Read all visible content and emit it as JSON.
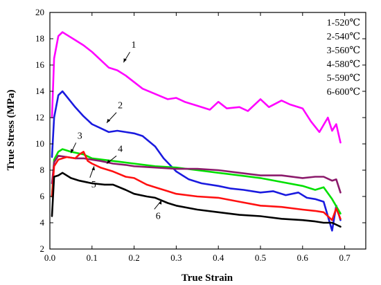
{
  "chart_data": {
    "type": "line",
    "title": "",
    "xlabel": "True Strain",
    "ylabel": "True Stress (MPa)",
    "xlim": [
      0.0,
      0.75
    ],
    "ylim": [
      2,
      20
    ],
    "xticks": [
      "0.0",
      "0.1",
      "0.2",
      "0.3",
      "0.4",
      "0.5",
      "0.6",
      "0.7"
    ],
    "yticks": [
      "2",
      "4",
      "6",
      "8",
      "10",
      "12",
      "14",
      "16",
      "18",
      "20"
    ],
    "grid": false,
    "legend_position": "top-right",
    "legend": [
      "1-520℃",
      "2-540℃",
      "3-560℃",
      "4-580℃",
      "5-590℃",
      "6-600℃"
    ],
    "series": [
      {
        "name": "1-520℃",
        "color": "#ff00ff",
        "label": "1",
        "x": [
          0.005,
          0.01,
          0.02,
          0.03,
          0.04,
          0.06,
          0.08,
          0.1,
          0.12,
          0.14,
          0.16,
          0.18,
          0.2,
          0.22,
          0.25,
          0.28,
          0.3,
          0.32,
          0.35,
          0.38,
          0.4,
          0.42,
          0.45,
          0.47,
          0.5,
          0.52,
          0.55,
          0.57,
          0.6,
          0.62,
          0.64,
          0.66,
          0.67,
          0.68,
          0.69
        ],
        "y": [
          12.0,
          16.5,
          18.2,
          18.5,
          18.3,
          17.9,
          17.5,
          17.0,
          16.4,
          15.8,
          15.6,
          15.2,
          14.7,
          14.2,
          13.8,
          13.4,
          13.5,
          13.2,
          12.9,
          12.6,
          13.2,
          12.7,
          12.8,
          12.5,
          13.4,
          12.8,
          13.3,
          13.0,
          12.7,
          11.7,
          10.9,
          12.0,
          11.0,
          11.5,
          10.1
        ]
      },
      {
        "name": "2-540℃",
        "color": "#1a1adf",
        "label": "2",
        "x": [
          0.005,
          0.01,
          0.02,
          0.03,
          0.04,
          0.06,
          0.08,
          0.1,
          0.12,
          0.14,
          0.16,
          0.18,
          0.2,
          0.22,
          0.25,
          0.27,
          0.3,
          0.33,
          0.36,
          0.4,
          0.43,
          0.46,
          0.5,
          0.53,
          0.56,
          0.59,
          0.61,
          0.63,
          0.65,
          0.67,
          0.68,
          0.69
        ],
        "y": [
          9.0,
          12.0,
          13.7,
          14.0,
          13.6,
          12.8,
          12.1,
          11.5,
          11.2,
          10.9,
          11.0,
          10.9,
          10.8,
          10.6,
          9.8,
          8.9,
          7.9,
          7.3,
          7.0,
          6.8,
          6.6,
          6.5,
          6.3,
          6.4,
          6.1,
          6.3,
          5.9,
          5.8,
          5.6,
          3.4,
          5.3,
          4.2
        ]
      },
      {
        "name": "3-560℃",
        "color": "#00e000",
        "label": "3",
        "x": [
          0.005,
          0.01,
          0.02,
          0.03,
          0.05,
          0.08,
          0.1,
          0.15,
          0.2,
          0.25,
          0.3,
          0.35,
          0.4,
          0.45,
          0.5,
          0.55,
          0.6,
          0.63,
          0.65,
          0.67,
          0.69
        ],
        "y": [
          6.0,
          8.8,
          9.4,
          9.6,
          9.4,
          9.2,
          8.9,
          8.7,
          8.5,
          8.3,
          8.2,
          8.0,
          7.8,
          7.6,
          7.4,
          7.1,
          6.8,
          6.5,
          6.7,
          5.8,
          4.7
        ]
      },
      {
        "name": "4-580℃",
        "color": "#8b1a6b",
        "label": "4",
        "x": [
          0.005,
          0.01,
          0.02,
          0.04,
          0.06,
          0.08,
          0.1,
          0.12,
          0.15,
          0.18,
          0.2,
          0.25,
          0.3,
          0.35,
          0.4,
          0.45,
          0.5,
          0.55,
          0.6,
          0.63,
          0.65,
          0.67,
          0.68,
          0.69
        ],
        "y": [
          7.0,
          8.6,
          9.1,
          9.0,
          8.9,
          8.9,
          8.8,
          8.7,
          8.5,
          8.4,
          8.3,
          8.2,
          8.1,
          8.1,
          8.0,
          7.8,
          7.6,
          7.6,
          7.4,
          7.5,
          7.5,
          7.2,
          7.3,
          6.3
        ]
      },
      {
        "name": "5-590℃",
        "color": "#ff1010",
        "label": "5",
        "x": [
          0.005,
          0.01,
          0.02,
          0.04,
          0.06,
          0.07,
          0.08,
          0.09,
          0.1,
          0.12,
          0.15,
          0.18,
          0.2,
          0.23,
          0.25,
          0.28,
          0.3,
          0.35,
          0.4,
          0.45,
          0.5,
          0.55,
          0.6,
          0.63,
          0.65,
          0.67,
          0.68,
          0.69
        ],
        "y": [
          6.0,
          8.3,
          8.8,
          9.0,
          8.9,
          9.2,
          9.4,
          8.7,
          8.5,
          8.2,
          7.9,
          7.5,
          7.4,
          6.9,
          6.7,
          6.4,
          6.2,
          6.0,
          5.9,
          5.6,
          5.3,
          5.2,
          5.0,
          4.9,
          4.8,
          4.2,
          5.1,
          4.3
        ]
      },
      {
        "name": "6-600℃",
        "color": "#000000",
        "label": "6",
        "x": [
          0.005,
          0.01,
          0.02,
          0.03,
          0.05,
          0.07,
          0.1,
          0.13,
          0.15,
          0.18,
          0.2,
          0.23,
          0.25,
          0.28,
          0.3,
          0.35,
          0.4,
          0.45,
          0.5,
          0.55,
          0.6,
          0.63,
          0.65,
          0.67,
          0.69
        ],
        "y": [
          4.5,
          7.5,
          7.6,
          7.8,
          7.4,
          7.2,
          7.0,
          6.9,
          6.9,
          6.5,
          6.2,
          6.0,
          5.9,
          5.5,
          5.3,
          5.0,
          4.8,
          4.6,
          4.5,
          4.3,
          4.2,
          4.1,
          4.0,
          4.0,
          3.7
        ]
      }
    ],
    "annotations": [
      {
        "text": "1",
        "x": 0.175,
        "y": 16.2,
        "label_x": 0.19,
        "label_y": 17.2
      },
      {
        "text": "2",
        "x": 0.135,
        "y": 11.6,
        "label_x": 0.158,
        "label_y": 12.6
      },
      {
        "text": "3",
        "x": 0.05,
        "y": 9.3,
        "label_x": 0.062,
        "label_y": 10.3
      },
      {
        "text": "4",
        "x": 0.135,
        "y": 8.5,
        "label_x": 0.158,
        "label_y": 9.3
      },
      {
        "text": "5",
        "x": 0.105,
        "y": 8.3,
        "label_x": 0.095,
        "label_y": 6.8
      },
      {
        "text": "6",
        "x": 0.265,
        "y": 5.7,
        "label_x": 0.248,
        "label_y": 4.4
      }
    ]
  }
}
